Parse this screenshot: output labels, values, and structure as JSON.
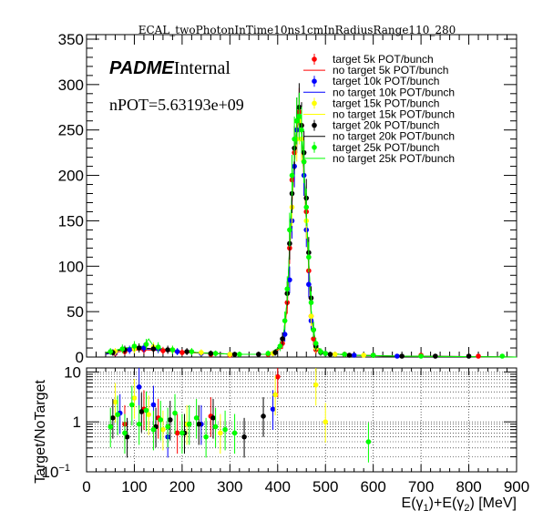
{
  "title": "ECAL_twoPhotonInTime10ns1cmInRadiusRange110_280",
  "annotations": {
    "padme_bold": "PADME",
    "padme_normal": "Internal",
    "npot": "nPOT=5.63193e+09"
  },
  "chart_data": [
    {
      "type": "scatter",
      "panel": "top",
      "xlim": [
        0,
        900
      ],
      "ylim": [
        0,
        355
      ],
      "yticks": [
        0,
        50,
        100,
        150,
        200,
        250,
        300,
        350
      ],
      "ytick_labels": [
        "0",
        "50",
        "100",
        "150",
        "200",
        "250",
        "300",
        "350"
      ],
      "grid": false,
      "legend_position": "top-right",
      "series": [
        {
          "name": "target 5k POT/bunch",
          "style": "marker",
          "color": "#ff0000",
          "x": [
            60,
            80,
            100,
            120,
            140,
            160,
            200,
            260,
            300,
            380,
            410,
            420,
            425,
            430,
            435,
            440,
            445,
            450,
            455,
            460,
            465,
            470,
            475,
            480,
            500,
            540,
            600,
            700,
            820
          ],
          "y": [
            4,
            6,
            9,
            8,
            9,
            7,
            5,
            3,
            2,
            3,
            15,
            60,
            120,
            195,
            225,
            250,
            270,
            255,
            215,
            160,
            95,
            45,
            20,
            8,
            4,
            3,
            2,
            2,
            1
          ]
        },
        {
          "name": "no target 5k POT/bunch",
          "style": "line",
          "color": "#ff0000",
          "x": [
            40,
            80,
            120,
            160,
            200,
            260,
            320,
            380,
            410,
            420,
            430,
            440,
            445,
            450,
            460,
            470,
            480,
            500,
            560,
            650,
            900
          ],
          "y": [
            3,
            7,
            8,
            7,
            5,
            4,
            3,
            3,
            10,
            55,
            170,
            250,
            265,
            245,
            150,
            45,
            10,
            4,
            2,
            1,
            0
          ]
        },
        {
          "name": "target 10k POT/bunch",
          "style": "marker",
          "color": "#0000ff",
          "x": [
            60,
            90,
            120,
            150,
            190,
            240,
            300,
            390,
            415,
            425,
            430,
            435,
            440,
            445,
            450,
            455,
            460,
            465,
            470,
            480,
            500,
            560,
            650
          ],
          "y": [
            5,
            8,
            10,
            9,
            6,
            4,
            3,
            4,
            25,
            85,
            150,
            210,
            250,
            265,
            240,
            200,
            140,
            80,
            40,
            12,
            4,
            2,
            1
          ]
        },
        {
          "name": "no target 10k POT/bunch",
          "style": "line",
          "color": "#0000ff",
          "x": [
            40,
            80,
            120,
            160,
            200,
            260,
            320,
            380,
            410,
            420,
            430,
            440,
            445,
            450,
            460,
            470,
            480,
            500,
            560,
            650,
            900
          ],
          "y": [
            3,
            8,
            9,
            8,
            6,
            4,
            3,
            3,
            12,
            60,
            175,
            255,
            270,
            250,
            155,
            48,
            11,
            4,
            2,
            1,
            0
          ]
        },
        {
          "name": "target 15k POT/bunch",
          "style": "marker",
          "color": "#ffff00",
          "x": [
            60,
            100,
            140,
            180,
            240,
            300,
            390,
            420,
            430,
            440,
            445,
            450,
            460,
            470,
            480,
            520,
            580
          ],
          "y": [
            6,
            9,
            11,
            8,
            5,
            3,
            4,
            70,
            165,
            240,
            260,
            240,
            150,
            45,
            10,
            3,
            2
          ]
        },
        {
          "name": "no target 15k POT/bunch",
          "style": "line",
          "color": "#ffff00",
          "x": [
            40,
            80,
            120,
            160,
            200,
            260,
            320,
            380,
            410,
            420,
            430,
            440,
            445,
            450,
            460,
            470,
            480,
            500,
            560,
            650,
            900
          ],
          "y": [
            4,
            8,
            10,
            8,
            6,
            4,
            3,
            3,
            11,
            58,
            172,
            252,
            268,
            248,
            152,
            46,
            10,
            4,
            2,
            1,
            0
          ]
        },
        {
          "name": "target 20k POT/bunch",
          "style": "marker",
          "color": "#000000",
          "x": [
            55,
            80,
            110,
            140,
            170,
            210,
            260,
            310,
            360,
            395,
            410,
            420,
            425,
            430,
            435,
            440,
            445,
            450,
            455,
            460,
            465,
            470,
            475,
            480,
            490,
            510,
            550,
            600,
            660,
            730,
            800
          ],
          "y": [
            5,
            8,
            10,
            9,
            8,
            6,
            4,
            3,
            3,
            5,
            20,
            70,
            125,
            180,
            230,
            260,
            275,
            255,
            225,
            175,
            115,
            65,
            30,
            12,
            5,
            3,
            2,
            2,
            1,
            1,
            1
          ]
        },
        {
          "name": "no target 20k POT/bunch",
          "style": "line",
          "color": "#000000",
          "x": [
            40,
            80,
            120,
            160,
            200,
            260,
            320,
            380,
            410,
            420,
            430,
            440,
            445,
            450,
            460,
            470,
            480,
            500,
            560,
            650,
            900
          ],
          "y": [
            4,
            9,
            10,
            8,
            6,
            4,
            3,
            3,
            12,
            62,
            178,
            258,
            272,
            252,
            158,
            50,
            12,
            4,
            2,
            1,
            0
          ]
        },
        {
          "name": "target 25k POT/bunch",
          "style": "marker",
          "color": "#00ff00",
          "x": [
            50,
            75,
            100,
            125,
            150,
            180,
            220,
            270,
            320,
            380,
            405,
            415,
            420,
            425,
            430,
            435,
            440,
            445,
            450,
            455,
            460,
            465,
            470,
            475,
            480,
            490,
            500,
            540,
            600,
            700,
            870
          ],
          "y": [
            6,
            9,
            12,
            14,
            11,
            8,
            6,
            4,
            3,
            4,
            12,
            40,
            75,
            140,
            200,
            240,
            260,
            265,
            250,
            215,
            165,
            110,
            60,
            30,
            15,
            6,
            4,
            3,
            2,
            1,
            1
          ]
        },
        {
          "name": "no target 25k POT/bunch",
          "style": "line",
          "color": "#00ff00",
          "x": [
            40,
            80,
            120,
            130,
            140,
            160,
            200,
            260,
            320,
            380,
            410,
            420,
            430,
            440,
            445,
            450,
            460,
            470,
            480,
            500,
            560,
            650,
            900
          ],
          "y": [
            5,
            10,
            12,
            20,
            12,
            9,
            6,
            4,
            3,
            3,
            13,
            64,
            180,
            260,
            275,
            255,
            160,
            52,
            12,
            4,
            2,
            1,
            0
          ]
        }
      ]
    },
    {
      "type": "scatter",
      "panel": "bottom",
      "ylabel": "Target/NoTarget",
      "xlabel_parts": [
        "E(γ",
        "1",
        ")+E(γ",
        "2",
        ") [MeV]"
      ],
      "xlim": [
        0,
        900
      ],
      "ylim": [
        0.1,
        12
      ],
      "yscale": "log",
      "xticks": [
        0,
        100,
        200,
        300,
        400,
        500,
        600,
        700,
        800,
        900
      ],
      "xtick_labels": [
        "0",
        "100",
        "200",
        "300",
        "400",
        "500",
        "600",
        "700",
        "800",
        "900"
      ],
      "yticks": [
        0.1,
        1,
        10
      ],
      "ytick_label_mantissa": [
        "10",
        "1",
        "10"
      ],
      "ytick_label_exponent": [
        "−1",
        "",
        ""
      ],
      "grid": true,
      "series": [
        {
          "color": "#ff0000",
          "x": [
            80,
            120,
            150,
            190,
            260,
            400
          ],
          "y": [
            0.9,
            1.8,
            1.2,
            0.6,
            1.3,
            8
          ]
        },
        {
          "color": "#0000ff",
          "x": [
            70,
            110,
            140,
            170,
            240,
            390
          ],
          "y": [
            1.5,
            5,
            2.2,
            0.5,
            0.9,
            1.8
          ]
        },
        {
          "color": "#ffff00",
          "x": [
            60,
            100,
            130,
            160,
            210,
            280,
            395,
            480,
            500
          ],
          "y": [
            2.5,
            3,
            1.4,
            0.7,
            0.9,
            0.6,
            3.5,
            5.5,
            1
          ]
        },
        {
          "color": "#000000",
          "x": [
            55,
            85,
            115,
            145,
            175,
            205,
            235,
            265,
            330,
            370
          ],
          "y": [
            1.2,
            0.5,
            1.6,
            0.8,
            1.1,
            0.6,
            0.9,
            1.2,
            0.5,
            1.3
          ]
        },
        {
          "color": "#00ff00",
          "x": [
            50,
            65,
            80,
            95,
            110,
            125,
            140,
            155,
            170,
            185,
            200,
            215,
            230,
            250,
            270,
            290,
            310,
            590
          ],
          "y": [
            0.8,
            1.4,
            0.6,
            2.2,
            0.9,
            1.7,
            0.7,
            1.1,
            0.8,
            1.5,
            0.6,
            0.9,
            1.2,
            0.5,
            0.8,
            0.7,
            0.6,
            0.4
          ]
        }
      ]
    }
  ]
}
